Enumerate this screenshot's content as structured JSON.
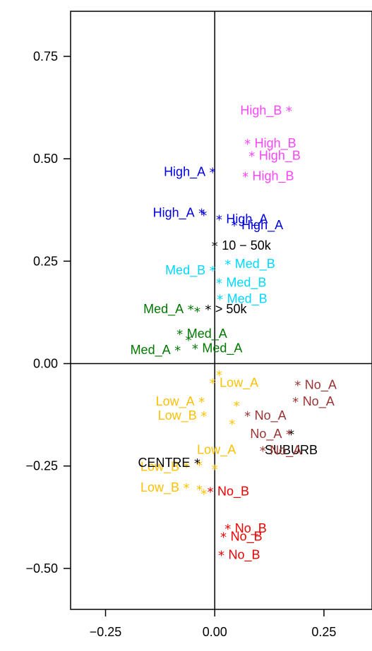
{
  "chart_data": {
    "type": "scatter",
    "title": "",
    "xlabel": "",
    "ylabel": "",
    "xlim": [
      -0.33,
      0.36
    ],
    "ylim": [
      -0.6,
      0.86
    ],
    "x_ticks": [
      {
        "value": -0.25,
        "label": "−0.25"
      },
      {
        "value": 0.0,
        "label": "0.00"
      },
      {
        "value": 0.25,
        "label": "0.25"
      }
    ],
    "y_ticks": [
      {
        "value": 0.75,
        "label": "0.75"
      },
      {
        "value": 0.5,
        "label": "0.50"
      },
      {
        "value": 0.25,
        "label": "0.25"
      },
      {
        "value": 0.0,
        "label": "0.00"
      },
      {
        "value": -0.25,
        "label": "−0.25"
      },
      {
        "value": -0.5,
        "label": "−0.50"
      }
    ],
    "grid": false,
    "colors": {
      "magenta": "#ff44ff",
      "blue": "#0000dd",
      "cyan": "#00d8ff",
      "green": "#007700",
      "yellow": "#ffc000",
      "brown": "#993333",
      "red": "#ee0000",
      "black": "#000000"
    },
    "points": [
      {
        "marker": "*",
        "label": "High_B",
        "x": 0.17,
        "y": 0.62,
        "color": "#ff44ff",
        "label_side": "left"
      },
      {
        "marker": "*",
        "label": "High_B",
        "x": 0.075,
        "y": 0.54,
        "color": "#ff44ff",
        "label_side": "right"
      },
      {
        "marker": "*",
        "label": "High_B",
        "x": 0.085,
        "y": 0.51,
        "color": "#ff44ff",
        "label_side": "right"
      },
      {
        "marker": "*",
        "label": "High_B",
        "x": 0.07,
        "y": 0.46,
        "color": "#ff44ff",
        "label_side": "right"
      },
      {
        "marker": "*",
        "label": "High_A",
        "x": -0.005,
        "y": 0.47,
        "color": "#0000dd",
        "label_side": "left"
      },
      {
        "marker": "*",
        "label": "High_A",
        "x": -0.03,
        "y": 0.37,
        "color": "#0000dd",
        "label_side": "left"
      },
      {
        "marker": "*",
        "label": "",
        "x": -0.025,
        "y": 0.365,
        "color": "#0000dd",
        "label_side": "none"
      },
      {
        "marker": "*",
        "label": "High_A",
        "x": 0.01,
        "y": 0.355,
        "color": "#0000dd",
        "label_side": "right"
      },
      {
        "marker": "*",
        "label": "High_A",
        "x": 0.045,
        "y": 0.34,
        "color": "#0000dd",
        "label_side": "right"
      },
      {
        "marker": "*",
        "label": "10 − 50k",
        "x": 0.0,
        "y": 0.29,
        "color": "#000000",
        "label_side": "right"
      },
      {
        "marker": "*",
        "label": "Med_B",
        "x": 0.03,
        "y": 0.245,
        "color": "#00d8ff",
        "label_side": "right"
      },
      {
        "marker": "*",
        "label": "Med_B",
        "x": -0.005,
        "y": 0.23,
        "color": "#00d8ff",
        "label_side": "left"
      },
      {
        "marker": "*",
        "label": "Med_B",
        "x": 0.01,
        "y": 0.2,
        "color": "#00d8ff",
        "label_side": "right"
      },
      {
        "marker": "*",
        "label": "Med_B",
        "x": 0.012,
        "y": 0.16,
        "color": "#00d8ff",
        "label_side": "right"
      },
      {
        "marker": "*",
        "label": "Med_A",
        "x": -0.055,
        "y": 0.135,
        "color": "#007700",
        "label_side": "left"
      },
      {
        "marker": "*",
        "label": "",
        "x": -0.04,
        "y": 0.13,
        "color": "#007700",
        "label_side": "none"
      },
      {
        "marker": "*",
        "label": "> 50k",
        "x": -0.015,
        "y": 0.135,
        "color": "#000000",
        "label_side": "right"
      },
      {
        "marker": "*",
        "label": "Med_A",
        "x": -0.08,
        "y": 0.075,
        "color": "#007700",
        "label_side": "right"
      },
      {
        "marker": "*",
        "label": "Med_A",
        "x": -0.06,
        "y": 0.06,
        "color": "#007700",
        "label_side": "none"
      },
      {
        "marker": "*",
        "label": "Med_A",
        "x": -0.085,
        "y": 0.035,
        "color": "#007700",
        "label_side": "left"
      },
      {
        "marker": "*",
        "label": "Med_A",
        "x": -0.045,
        "y": 0.04,
        "color": "#007700",
        "label_side": "right"
      },
      {
        "marker": "*",
        "label": "",
        "x": 0.01,
        "y": -0.025,
        "color": "#ffc000",
        "label_side": "none"
      },
      {
        "marker": "*",
        "label": "Low_A",
        "x": -0.005,
        "y": -0.045,
        "color": "#ffc000",
        "label_side": "right"
      },
      {
        "marker": "*",
        "label": "Low_A",
        "x": -0.03,
        "y": -0.09,
        "color": "#ffc000",
        "label_side": "left"
      },
      {
        "marker": "*",
        "label": "Low_A",
        "x": 0.05,
        "y": -0.1,
        "color": "#ffc000",
        "label_side": "none"
      },
      {
        "marker": "*",
        "label": "Low_B",
        "x": -0.025,
        "y": -0.125,
        "color": "#ffc000",
        "label_side": "left"
      },
      {
        "marker": "*",
        "label": "",
        "x": 0.04,
        "y": -0.145,
        "color": "#ffc000",
        "label_side": "none"
      },
      {
        "marker": "*",
        "label": "Low_A",
        "x": 0.0,
        "y": -0.255,
        "color": "#ffc000",
        "label_side": "above-left"
      },
      {
        "marker": "*",
        "label": "Low_B",
        "x": -0.065,
        "y": -0.25,
        "color": "#ffc000",
        "label_side": "left"
      },
      {
        "marker": "*",
        "label": "",
        "x": -0.035,
        "y": -0.245,
        "color": "#ffc000",
        "label_side": "none"
      },
      {
        "marker": "*",
        "label": "Low_B",
        "x": -0.065,
        "y": -0.3,
        "color": "#ffc000",
        "label_side": "left"
      },
      {
        "marker": "*",
        "label": "",
        "x": -0.035,
        "y": -0.305,
        "color": "#ffc000",
        "label_side": "none"
      },
      {
        "marker": "*",
        "label": "",
        "x": -0.025,
        "y": -0.315,
        "color": "#ffc000",
        "label_side": "none"
      },
      {
        "marker": "*",
        "label": "CENTRE",
        "x": -0.04,
        "y": -0.24,
        "color": "#000000",
        "label_side": "left"
      },
      {
        "marker": "*",
        "label": "SUBURB",
        "x": 0.175,
        "y": -0.17,
        "color": "#000000",
        "label_side": "below"
      },
      {
        "marker": "*",
        "label": "No_A",
        "x": 0.19,
        "y": -0.05,
        "color": "#993333",
        "label_side": "right"
      },
      {
        "marker": "*",
        "label": "No_A",
        "x": 0.185,
        "y": -0.09,
        "color": "#993333",
        "label_side": "right"
      },
      {
        "marker": "*",
        "label": "No_A",
        "x": 0.075,
        "y": -0.125,
        "color": "#993333",
        "label_side": "right"
      },
      {
        "marker": "*",
        "label": "No_A",
        "x": 0.17,
        "y": -0.17,
        "color": "#993333",
        "label_side": "left"
      },
      {
        "marker": "*",
        "label": "No_A",
        "x": 0.11,
        "y": -0.21,
        "color": "#993333",
        "label_side": "right"
      },
      {
        "marker": "*",
        "label": "No_B",
        "x": -0.01,
        "y": -0.31,
        "color": "#ee0000",
        "label_side": "right"
      },
      {
        "marker": "*",
        "label": "No_B",
        "x": 0.03,
        "y": -0.4,
        "color": "#ee0000",
        "label_side": "right"
      },
      {
        "marker": "*",
        "label": "No_B",
        "x": 0.02,
        "y": -0.42,
        "color": "#ee0000",
        "label_side": "right"
      },
      {
        "marker": "*",
        "label": "No_B",
        "x": 0.015,
        "y": -0.465,
        "color": "#ee0000",
        "label_side": "right"
      }
    ]
  }
}
